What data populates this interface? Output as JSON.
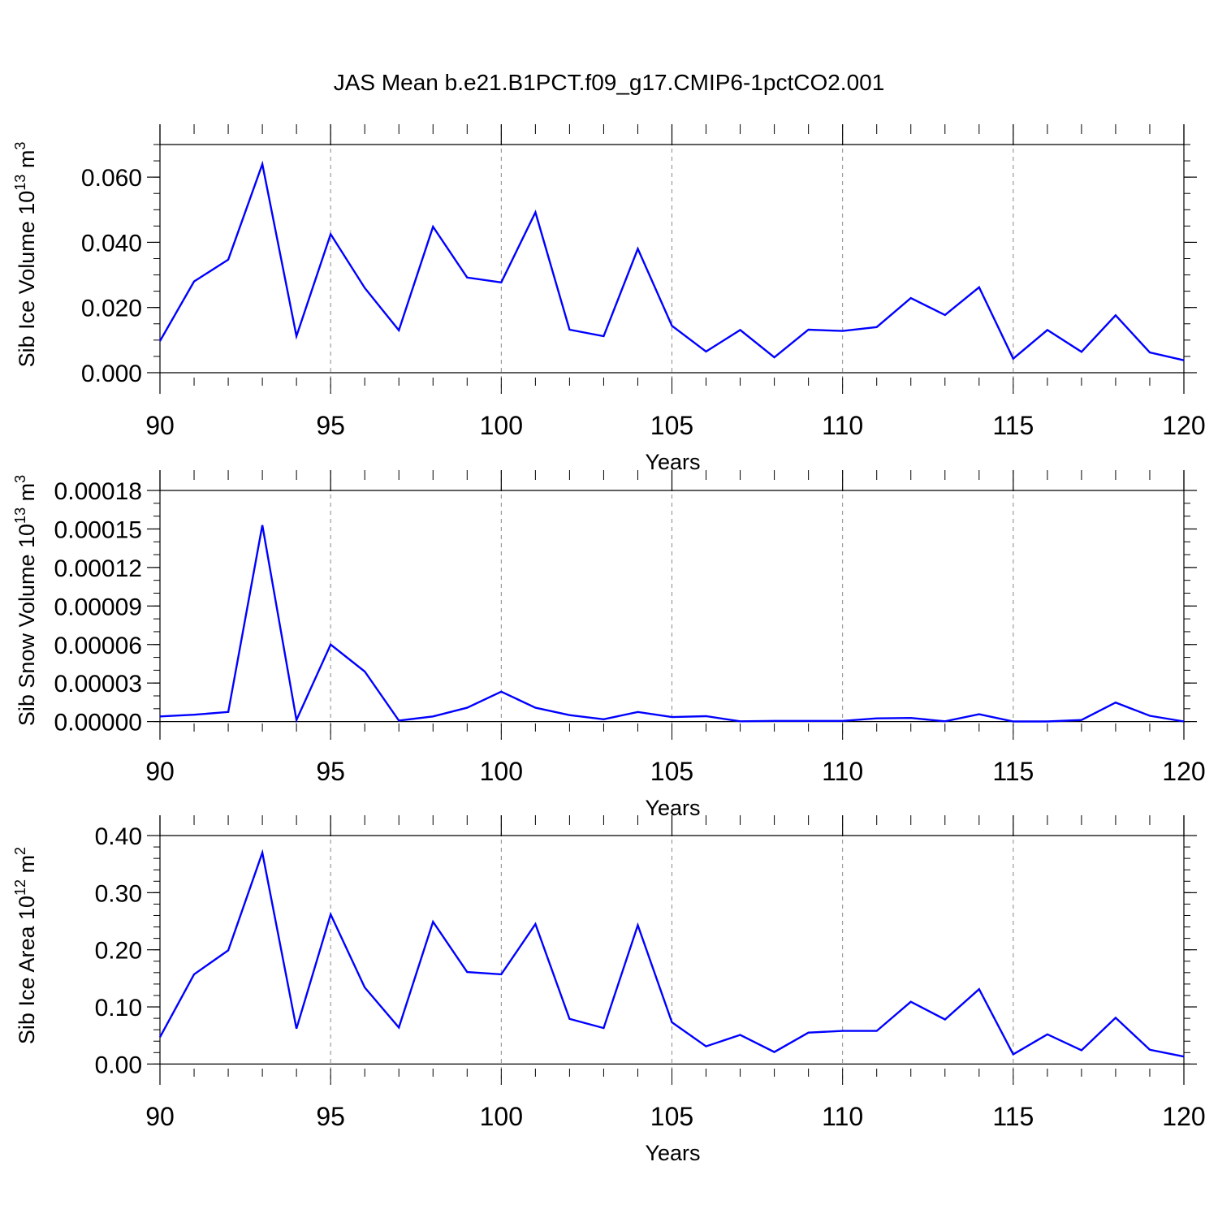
{
  "title": "JAS Mean b.e21.B1PCT.f09_g17.CMIP6-1pctCO2.001",
  "colors": {
    "line": "#0000ff",
    "axis": "#000000",
    "grid": "#888888"
  },
  "chart_data": [
    {
      "type": "line",
      "ylabel_main": "Sib Ice Volume 10",
      "ylabel_exp": "13",
      "ylabel_unit": " m",
      "ylabel_unit_exp": "3",
      "xlabel": "Years",
      "xlim": [
        90,
        120
      ],
      "ylim": [
        -0.0015,
        0.07
      ],
      "yticks": [
        0.0,
        0.02,
        0.04,
        0.06
      ],
      "ytick_labels": [
        "0.000",
        "0.020",
        "0.040",
        "0.060"
      ],
      "ylines": [
        0.0,
        0.07
      ],
      "yminor_step": 0.005,
      "xticks": [
        90,
        95,
        100,
        105,
        110,
        115,
        120
      ],
      "xtick_labels": [
        "90",
        "95",
        "100",
        "105",
        "110",
        "115",
        "120"
      ],
      "grid_x": true,
      "x": [
        90,
        91,
        92,
        93,
        94,
        95,
        96,
        97,
        98,
        99,
        100,
        101,
        102,
        103,
        104,
        105,
        106,
        107,
        108,
        109,
        110,
        111,
        112,
        113,
        114,
        115,
        116,
        117,
        118,
        119,
        120
      ],
      "values": [
        0.0097,
        0.028,
        0.0347,
        0.064,
        0.0112,
        0.0425,
        0.026,
        0.013,
        0.0448,
        0.0292,
        0.0277,
        0.0492,
        0.0132,
        0.0112,
        0.038,
        0.0144,
        0.0065,
        0.0131,
        0.0047,
        0.0132,
        0.0128,
        0.014,
        0.0229,
        0.0177,
        0.0262,
        0.0043,
        0.0131,
        0.0064,
        0.0176,
        0.0062,
        0.0038
      ]
    },
    {
      "type": "line",
      "ylabel_main": "Sib Snow Volume 10",
      "ylabel_exp": "13",
      "ylabel_unit": " m",
      "ylabel_unit_exp": "3",
      "xlabel": "Years",
      "xlim": [
        90,
        120
      ],
      "ylim": [
        -1.5e-06,
        0.00018
      ],
      "yticks": [
        0.0,
        3e-05,
        6e-05,
        9e-05,
        0.00012,
        0.00015,
        0.00018
      ],
      "ytick_labels": [
        "0.00000",
        "0.00003",
        "0.00006",
        "0.00009",
        "0.00012",
        "0.00015",
        "0.00018"
      ],
      "ylines": [
        0.0,
        0.00018
      ],
      "yminor_step": 1e-05,
      "xticks": [
        90,
        95,
        100,
        105,
        110,
        115,
        120
      ],
      "xtick_labels": [
        "90",
        "95",
        "100",
        "105",
        "110",
        "115",
        "120"
      ],
      "grid_x": true,
      "x": [
        90,
        91,
        92,
        93,
        94,
        95,
        96,
        97,
        98,
        99,
        100,
        101,
        102,
        103,
        104,
        105,
        106,
        107,
        108,
        109,
        110,
        111,
        112,
        113,
        114,
        115,
        116,
        117,
        118,
        119,
        120
      ],
      "values": [
        4e-06,
        5.3e-06,
        7.5e-06,
        0.000153,
        1.2e-06,
        6e-05,
        3.9e-05,
        8e-07,
        4e-06,
        1.08e-05,
        2.33e-05,
        1.08e-05,
        5e-06,
        1.8e-06,
        7.5e-06,
        3.5e-06,
        4.2e-06,
        2e-07,
        5e-07,
        5e-07,
        5e-07,
        2.5e-06,
        2.8e-06,
        2e-07,
        5.7e-06,
        1e-07,
        1e-07,
        1.2e-06,
        1.48e-05,
        4.5e-06,
        1e-07
      ]
    },
    {
      "type": "line",
      "ylabel_main": "Sib Ice Area 10",
      "ylabel_exp": "12",
      "ylabel_unit": " m",
      "ylabel_unit_exp": "2",
      "xlabel": "Years",
      "xlim": [
        90,
        120
      ],
      "ylim": [
        -0.008,
        0.4
      ],
      "yticks": [
        0.0,
        0.1,
        0.2,
        0.3,
        0.4
      ],
      "ytick_labels": [
        "0.00",
        "0.10",
        "0.20",
        "0.30",
        "0.40"
      ],
      "ylines": [
        0.0,
        0.4
      ],
      "yminor_step": 0.02,
      "xticks": [
        90,
        95,
        100,
        105,
        110,
        115,
        120
      ],
      "xtick_labels": [
        "90",
        "95",
        "100",
        "105",
        "110",
        "115",
        "120"
      ],
      "grid_x": true,
      "x": [
        90,
        91,
        92,
        93,
        94,
        95,
        96,
        97,
        98,
        99,
        100,
        101,
        102,
        103,
        104,
        105,
        106,
        107,
        108,
        109,
        110,
        111,
        112,
        113,
        114,
        115,
        116,
        117,
        118,
        119,
        120
      ],
      "values": [
        0.047,
        0.157,
        0.199,
        0.37,
        0.062,
        0.262,
        0.134,
        0.064,
        0.249,
        0.161,
        0.157,
        0.245,
        0.079,
        0.063,
        0.243,
        0.073,
        0.031,
        0.051,
        0.021,
        0.055,
        0.058,
        0.058,
        0.109,
        0.078,
        0.131,
        0.017,
        0.052,
        0.024,
        0.081,
        0.025,
        0.013
      ]
    }
  ]
}
